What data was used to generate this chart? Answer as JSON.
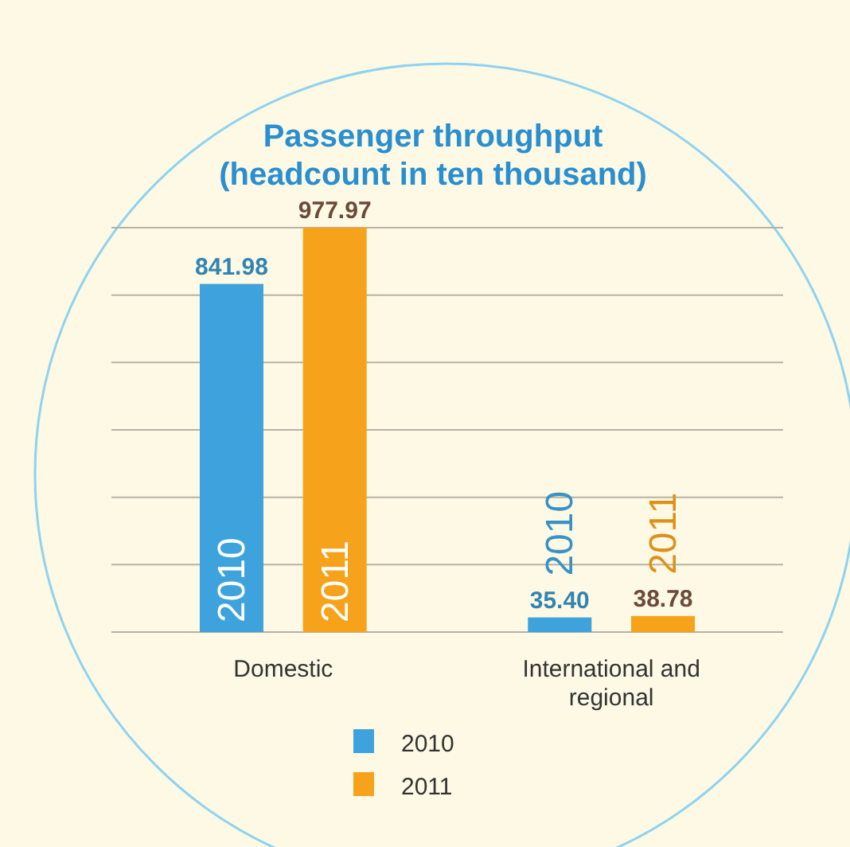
{
  "chart_data": {
    "type": "bar",
    "title": "Passenger throughput\n(headcount in ten thousand)",
    "categories": [
      "Domestic",
      "International and regional"
    ],
    "series": [
      {
        "name": "2010",
        "color": "#3ea3dc",
        "values": [
          841.98,
          35.4
        ],
        "value_labels": [
          "841.98",
          "35.40"
        ]
      },
      {
        "name": "2011",
        "color": "#f6a21a",
        "values": [
          977.97,
          38.78
        ],
        "value_labels": [
          "977.97",
          "38.78"
        ]
      }
    ],
    "ylim": [
      0,
      978
    ],
    "yticks": [
      {
        "value": 0,
        "label": null
      },
      {
        "value": 163,
        "label": null
      },
      {
        "value": 326,
        "label": null
      },
      {
        "value": 489,
        "label": null
      },
      {
        "value": 652,
        "label": null
      },
      {
        "value": 815,
        "label": null
      },
      {
        "value": 978,
        "label": null
      }
    ],
    "tick_labels": "x",
    "grid": "y",
    "legend": "bottom"
  }
}
